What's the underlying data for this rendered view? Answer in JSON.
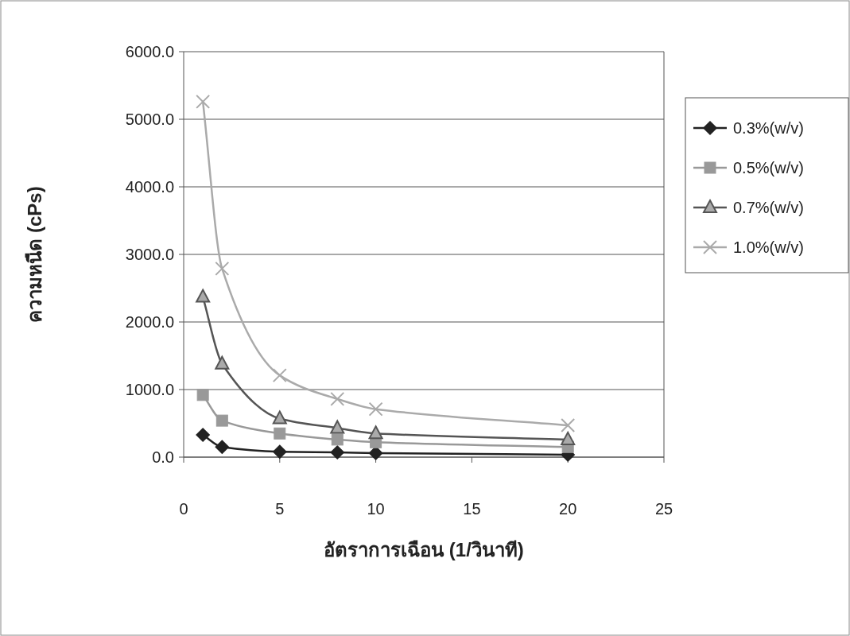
{
  "chart_data": {
    "type": "line",
    "xlabel": "อัตราการเฉือน (1/วินาที)",
    "ylabel": "ความหนืด (cPs)",
    "xlim": [
      0,
      25
    ],
    "xticks": [
      0,
      5,
      10,
      15,
      20,
      25
    ],
    "ylim": [
      0,
      6000
    ],
    "yticks": [
      {
        "value": 0,
        "label": "0.0"
      },
      {
        "value": 1000,
        "label": "1000.0"
      },
      {
        "value": 2000,
        "label": "2000.0"
      },
      {
        "value": 3000,
        "label": "3000.0"
      },
      {
        "value": 4000,
        "label": "4000.0"
      },
      {
        "value": 5000,
        "label": "5000.0"
      },
      {
        "value": 6000,
        "label": "6000.0"
      }
    ],
    "grid": "y",
    "legend": "right",
    "series": [
      {
        "name": "0.3%(w/v)",
        "color": "#222222",
        "marker": "diamond",
        "x": [
          1,
          2,
          5,
          8,
          10,
          20
        ],
        "values": [
          330,
          150,
          80,
          70,
          60,
          35
        ]
      },
      {
        "name": "0.5%(w/v)",
        "color": "#999999",
        "marker": "square",
        "x": [
          1,
          2,
          5,
          8,
          10,
          20
        ],
        "values": [
          920,
          540,
          350,
          260,
          220,
          150
        ]
      },
      {
        "name": "0.7%(w/v)",
        "color": "#555555",
        "marker": "triangle",
        "x": [
          1,
          2,
          5,
          8,
          10,
          20
        ],
        "values": [
          2370,
          1380,
          570,
          430,
          350,
          260
        ]
      },
      {
        "name": "1.0%(w/v)",
        "color": "#aaaaaa",
        "marker": "cross",
        "x": [
          1,
          2,
          5,
          8,
          10,
          20
        ],
        "values": [
          5260,
          2790,
          1210,
          860,
          710,
          470
        ]
      }
    ]
  }
}
